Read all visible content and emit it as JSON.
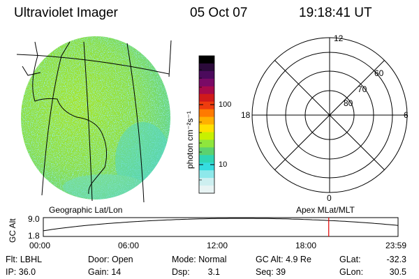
{
  "header": {
    "title": "Ultraviolet Imager",
    "date": "05 Oct 07",
    "time": "19:18:41 UT"
  },
  "colorbar": {
    "unit_label": "photon cm⁻²s⁻¹",
    "ticks": [
      "100",
      "10"
    ],
    "colors": [
      "#000000",
      "#2b0a3a",
      "#4b0a5c",
      "#7a0a66",
      "#a80a4a",
      "#d01a1a",
      "#ee3c0e",
      "#ff7a00",
      "#ffb000",
      "#ffe000",
      "#c8f000",
      "#8fe63c",
      "#5cd26e",
      "#2fd6b4",
      "#35dde0",
      "#8ee8ea",
      "#cdeff0",
      "#e8f4f4"
    ]
  },
  "left_panel": {
    "caption": "Geographic Lat/Lon"
  },
  "right_panel": {
    "caption": "Apex MLat/MLT",
    "mlt_labels": {
      "top": "12",
      "left": "18",
      "right": "6",
      "bottom": "0"
    },
    "mlat_labels": [
      "60",
      "70",
      "80"
    ]
  },
  "altitude_plot": {
    "ylabel": "GC Alt",
    "ymax_label": "9.0",
    "ymin_label": "1.8",
    "xticks": [
      "00:00",
      "06:00",
      "12:00",
      "18:00",
      "23:59"
    ],
    "current_marker_hours": 19.31,
    "marker_color": "#e00000"
  },
  "info": {
    "row1": {
      "filter": "Flt: LBHL",
      "door": "Door: Open",
      "mode": "Mode: Normal",
      "gc_alt": "GC Alt: 4.9 Re",
      "glat_label": "GLat:",
      "glat_value": "-32.3"
    },
    "row2": {
      "ip": "IP: 36.0",
      "gain": "Gain: 14",
      "dsp_label": "Dsp:",
      "dsp_value": "3.1",
      "seq": "Seq: 39",
      "glon_label": "GLon:",
      "glon_value": "30.5"
    }
  }
}
